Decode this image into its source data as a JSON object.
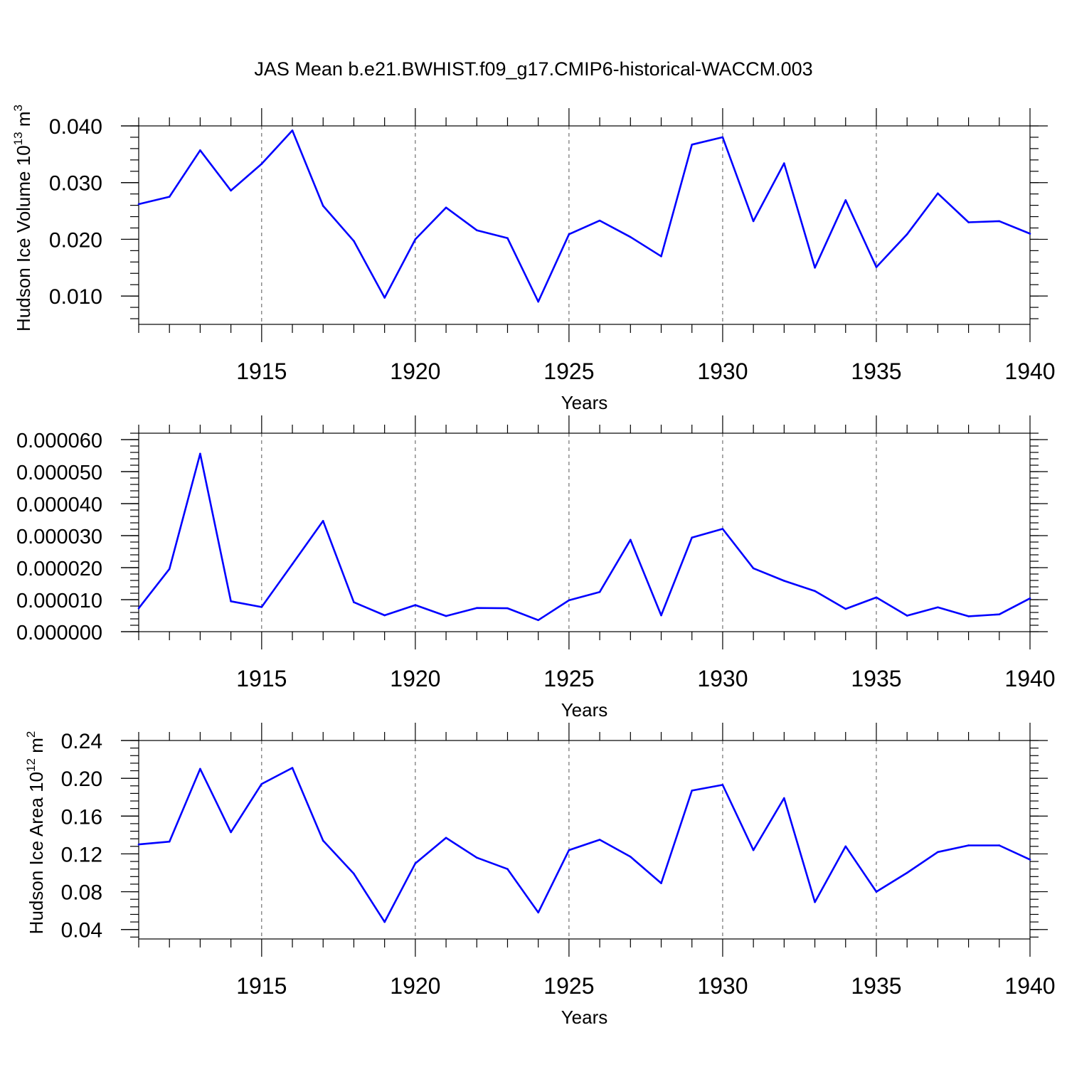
{
  "figure_title": "JAS Mean b.e21.BWHIST.f09_g17.CMIP6-historical-WACCM.003",
  "colors": {
    "line": "#0000ff",
    "axis": "#000000"
  },
  "chart_data": [
    {
      "type": "line",
      "ylabel_main": "Hudson Ice Volume 10",
      "ylabel_exp": "13",
      "ylabel_unit": " m",
      "ylabel_unit_exp": "3",
      "xlabel": "Years",
      "xlim": [
        1911,
        1940
      ],
      "ylim": [
        0.005,
        0.04
      ],
      "xticks": [
        1915,
        1920,
        1925,
        1930,
        1935,
        1940
      ],
      "yticks": [
        0.01,
        0.02,
        0.03,
        0.04
      ],
      "ytick_labels": [
        "0.010",
        "0.020",
        "0.030",
        "0.040"
      ],
      "x": [
        1911,
        1912,
        1913,
        1914,
        1915,
        1916,
        1917,
        1918,
        1919,
        1920,
        1921,
        1922,
        1923,
        1924,
        1925,
        1926,
        1927,
        1928,
        1929,
        1930,
        1931,
        1932,
        1933,
        1934,
        1935,
        1936,
        1937,
        1938,
        1939,
        1940
      ],
      "values": [
        0.0262,
        0.0275,
        0.0357,
        0.0286,
        0.0333,
        0.0392,
        0.0259,
        0.0197,
        0.0097,
        0.02,
        0.0256,
        0.0216,
        0.0202,
        0.009,
        0.0209,
        0.0233,
        0.0204,
        0.017,
        0.0367,
        0.038,
        0.0232,
        0.0334,
        0.015,
        0.0269,
        0.0151,
        0.0209,
        0.0281,
        0.023,
        0.0232,
        0.021
      ]
    },
    {
      "type": "line",
      "ylabel_main": "",
      "xlabel": "Years",
      "xlim": [
        1911,
        1940
      ],
      "ylim": [
        0.0,
        6.2e-05
      ],
      "xticks": [
        1915,
        1920,
        1925,
        1930,
        1935,
        1940
      ],
      "yticks": [
        0.0,
        1e-05,
        2e-05,
        3e-05,
        4e-05,
        5e-05,
        6e-05
      ],
      "ytick_labels": [
        "0.000000",
        "0.000010",
        "0.000020",
        "0.000030",
        "0.000040",
        "0.000050",
        "0.000060"
      ],
      "x": [
        1911,
        1912,
        1913,
        1914,
        1915,
        1916,
        1917,
        1918,
        1919,
        1920,
        1921,
        1922,
        1923,
        1924,
        1925,
        1926,
        1927,
        1928,
        1929,
        1930,
        1931,
        1932,
        1933,
        1934,
        1935,
        1936,
        1937,
        1938,
        1939,
        1940
      ],
      "values": [
        7.3e-06,
        1.96e-05,
        5.56e-05,
        9.5e-06,
        7.7e-06,
        2.11e-05,
        3.46e-05,
        9.2e-06,
        5.1e-06,
        8.3e-06,
        4.9e-06,
        7.4e-06,
        7.3e-06,
        3.6e-06,
        9.8e-06,
        1.24e-05,
        2.87e-05,
        5.1e-06,
        2.94e-05,
        3.21e-05,
        1.98e-05,
        1.59e-05,
        1.27e-05,
        7.1e-06,
        1.07e-05,
        5e-06,
        7.6e-06,
        4.8e-06,
        5.4e-06,
        1.04e-05
      ]
    },
    {
      "type": "line",
      "ylabel_main": "Hudson Ice Area 10",
      "ylabel_exp": "12",
      "ylabel_unit": " m",
      "ylabel_unit_exp": "2",
      "xlabel": "Years",
      "xlim": [
        1911,
        1940
      ],
      "ylim": [
        0.03,
        0.24
      ],
      "xticks": [
        1915,
        1920,
        1925,
        1930,
        1935,
        1940
      ],
      "yticks": [
        0.04,
        0.08,
        0.12,
        0.16,
        0.2,
        0.24
      ],
      "ytick_labels": [
        "0.04",
        "0.08",
        "0.12",
        "0.16",
        "0.20",
        "0.24"
      ],
      "x": [
        1911,
        1912,
        1913,
        1914,
        1915,
        1916,
        1917,
        1918,
        1919,
        1920,
        1921,
        1922,
        1923,
        1924,
        1925,
        1926,
        1927,
        1928,
        1929,
        1930,
        1931,
        1932,
        1933,
        1934,
        1935,
        1936,
        1937,
        1938,
        1939,
        1940
      ],
      "values": [
        0.13,
        0.133,
        0.21,
        0.143,
        0.194,
        0.211,
        0.134,
        0.099,
        0.048,
        0.11,
        0.137,
        0.116,
        0.104,
        0.058,
        0.124,
        0.135,
        0.117,
        0.089,
        0.187,
        0.193,
        0.124,
        0.179,
        0.069,
        0.128,
        0.08,
        0.1,
        0.122,
        0.129,
        0.129,
        0.114
      ]
    }
  ]
}
